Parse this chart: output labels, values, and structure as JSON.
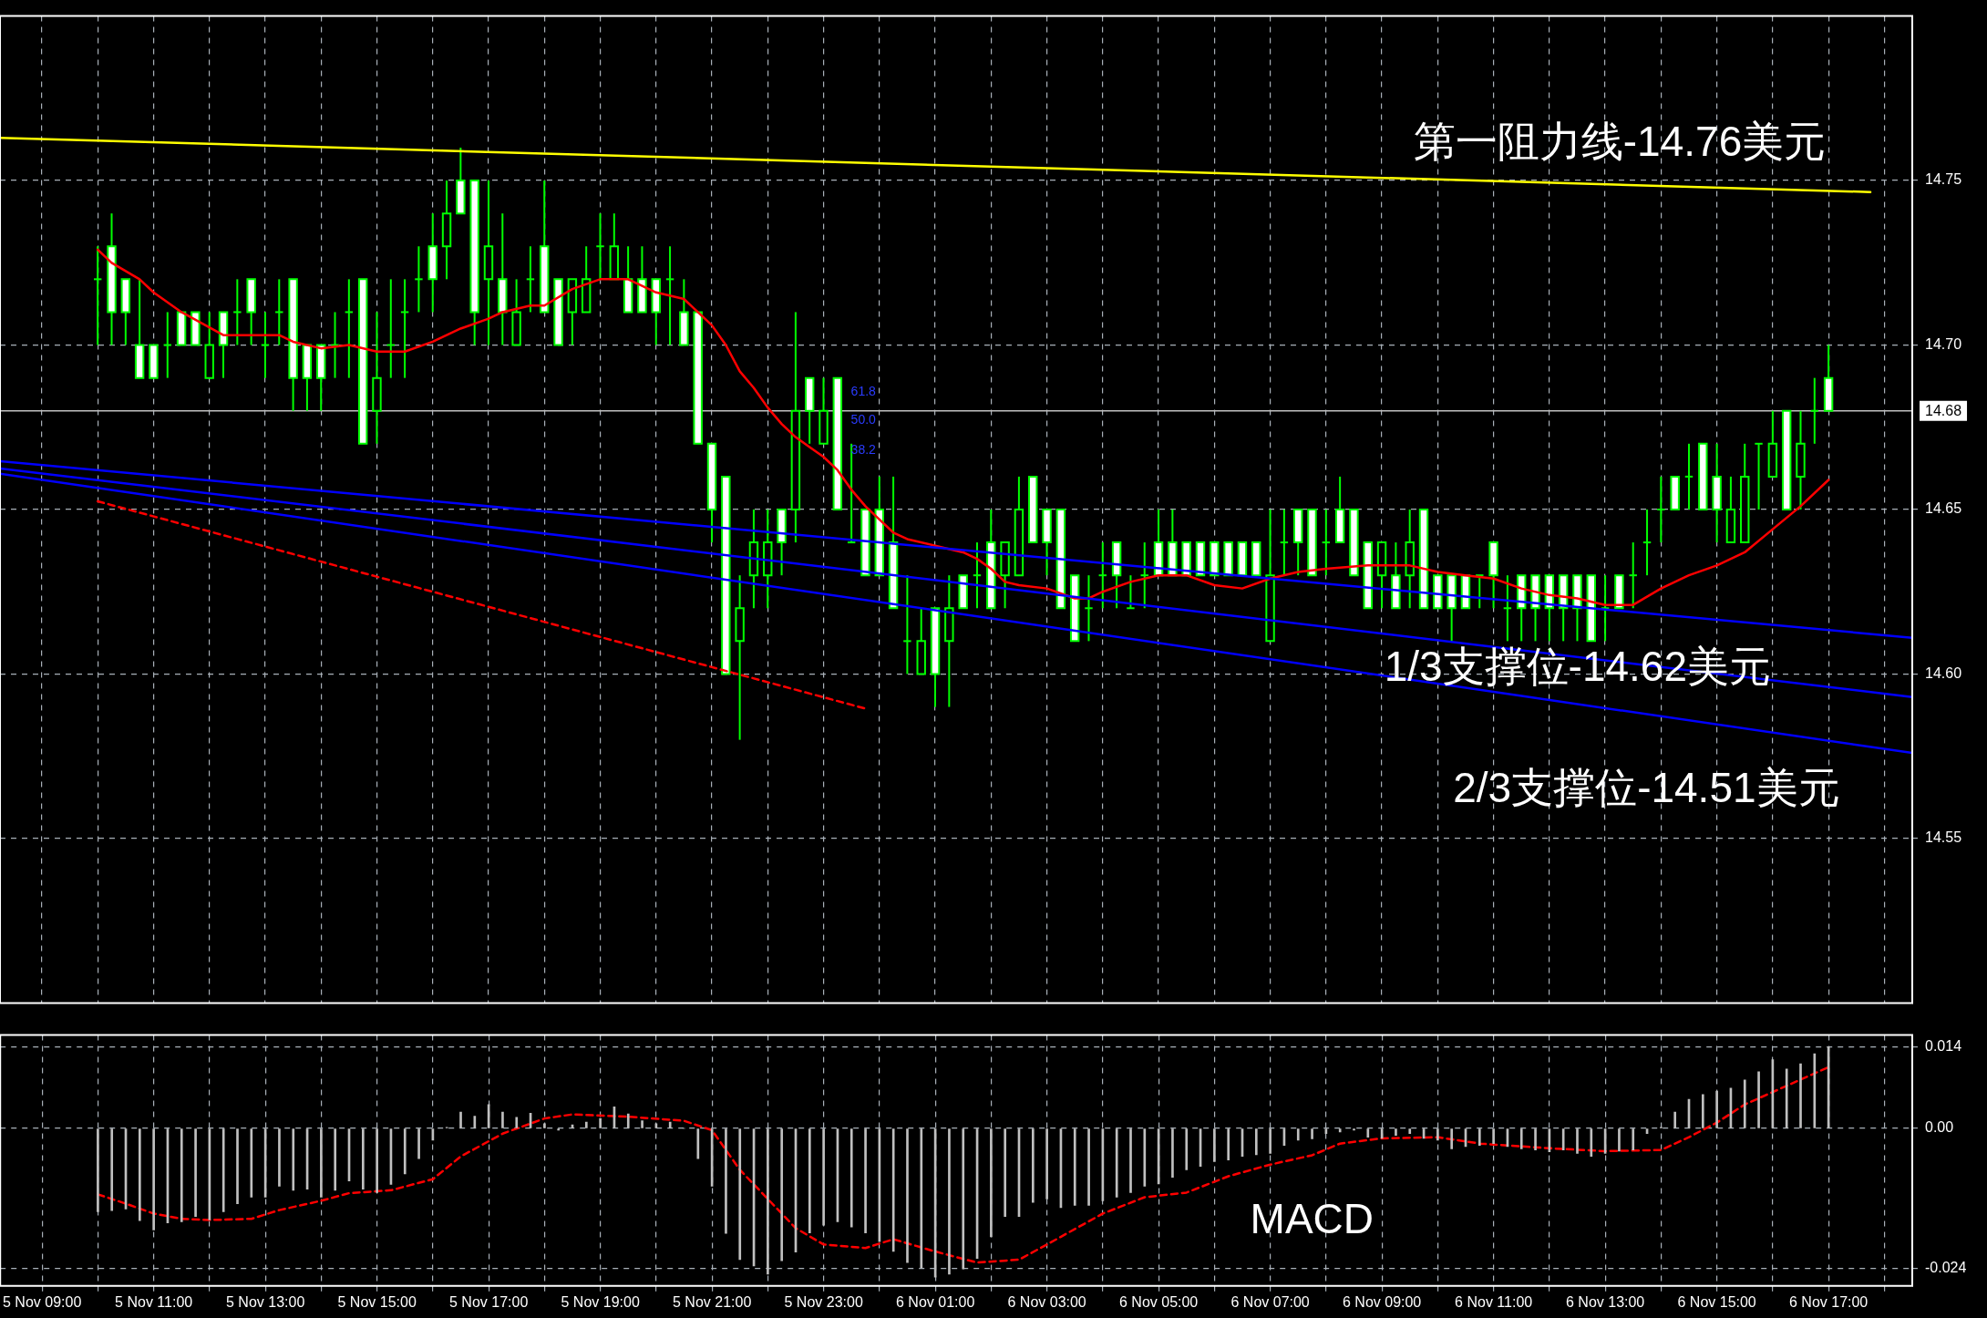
{
  "chart_data": [
    {
      "type": "candlestick",
      "color": "#00ff00",
      "colors": [
        "#00ff00",
        "#ffffff",
        "#ffffff",
        "#ffffff",
        "#ffffff",
        "#00ff00",
        "#ffffff",
        "#ffffff",
        "#000000",
        "#ffffff",
        "#00ff00",
        "#ffffff",
        "#00ff00",
        "#00ff00",
        "#ffffff",
        "#ffffff",
        "#ffffff",
        "#00ff00",
        "#00ff00",
        "#ffffff",
        "#000000",
        "#00ff00",
        "#00ff00",
        "#00ff00",
        "#ffffff",
        "#000000",
        "#ffffff",
        "#ffffff",
        "#000000",
        "#ffffff",
        "#000000",
        "#00ff00",
        "#ffffff",
        "#ffffff",
        "#000000",
        "#000000",
        "#00ff00",
        "#000000",
        "#ffffff",
        "#ffffff",
        "#ffffff",
        "#00ff00",
        "#ffffff",
        "#ffffff",
        "#ffffff",
        "#ffffff",
        "#000000",
        "#000000",
        "#000000",
        "#ffffff",
        "#000000",
        "#ffffff",
        "#000000",
        "#ffffff",
        "#00ff00",
        "#ffffff",
        "#ffffff",
        "#ffffff",
        "#00ff00",
        "#000000",
        "#ffffff",
        "#000000",
        "#ffffff",
        "#00ff00",
        "#ffffff",
        "#000000",
        "#000000",
        "#ffffff",
        "#ffffff",
        "#ffffff",
        "#ffffff",
        "#00ff00",
        "#00ff00",
        "#ffffff",
        "#00ff00",
        "#00ff00",
        "#ffffff",
        "#ffffff",
        "#ffffff",
        "#ffffff",
        "#ffffff",
        "#ffffff",
        "#ffffff",
        "#ffffff",
        "#000000",
        "#00ff00",
        "#ffffff",
        "#ffffff",
        "#00ff00",
        "#ffffff",
        "#ffffff",
        "#ffffff",
        "#000000",
        "#ffffff",
        "#000000",
        "#ffffff",
        "#ffffff",
        "#ffffff",
        "#ffffff",
        "#00ff00",
        "#ffffff",
        "#00ff00",
        "#ffffff",
        "#ffffff",
        "#ffffff",
        "#ffffff",
        "#ffffff",
        "#ffffff",
        "#00ff00",
        "#ffffff",
        "#00ff00",
        "#00ff00",
        "#00ff00",
        "#ffffff",
        "#00ff00",
        "#ffffff",
        "#ffffff",
        "#000000",
        "#000000",
        "#00ff00",
        "#000000",
        "#ffffff",
        "#000000",
        "#00ff00",
        "#ffffff"
      ],
      "x": [
        "--11-05T10:00",
        "--11-05T10:15",
        "--11-05T10:30",
        "--11-05T10:45",
        "--11-05T11:00",
        "--11-05T11:15",
        "--11-05T11:30",
        "--11-05T11:45",
        "--11-05T12:00",
        "--11-05T12:15",
        "--11-05T12:30",
        "--11-05T12:45",
        "--11-05T13:00",
        "--11-05T13:15",
        "--11-05T13:30",
        "--11-05T13:45",
        "--11-05T14:00",
        "--11-05T14:15",
        "--11-05T14:30",
        "--11-05T14:45",
        "--11-05T15:00",
        "--11-05T15:15",
        "--11-05T15:30",
        "--11-05T15:45",
        "--11-05T16:00",
        "--11-05T16:15",
        "--11-05T16:30",
        "--11-05T16:45",
        "--11-05T17:00",
        "--11-05T17:15",
        "--11-05T17:30",
        "--11-05T17:45",
        "--11-05T18:00",
        "--11-05T18:15",
        "--11-05T18:30",
        "--11-05T18:45",
        "--11-05T19:00",
        "--11-05T19:15",
        "--11-05T19:30",
        "--11-05T19:45",
        "--11-05T20:00",
        "--11-05T20:15",
        "--11-05T20:30",
        "--11-05T20:45",
        "--11-05T21:00",
        "--11-05T21:15",
        "--11-05T21:30",
        "--11-05T21:45",
        "--11-05T22:00",
        "--11-05T22:15",
        "--11-05T22:30",
        "--11-05T22:45",
        "--11-05T23:00",
        "--11-05T23:15",
        "--11-05T23:30",
        "--11-05T23:45",
        "--11-06T00:00",
        "--11-06T00:15",
        "--11-06T00:30",
        "--11-06T00:45",
        "--11-06T01:00",
        "--11-06T01:15",
        "--11-06T01:30",
        "--11-06T01:45",
        "--11-06T02:00",
        "--11-06T02:15",
        "--11-06T02:30",
        "--11-06T02:45",
        "--11-06T03:00",
        "--11-06T03:15",
        "--11-06T03:30",
        "--11-06T03:45",
        "--11-06T04:00",
        "--11-06T04:15",
        "--11-06T04:30",
        "--11-06T04:45",
        "--11-06T05:00",
        "--11-06T05:15",
        "--11-06T05:30",
        "--11-06T05:45",
        "--11-06T06:00",
        "--11-06T06:15",
        "--11-06T06:30",
        "--11-06T06:45",
        "--11-06T07:00",
        "--11-06T07:15",
        "--11-06T07:30",
        "--11-06T07:45",
        "--11-06T08:00",
        "--11-06T08:15",
        "--11-06T08:30",
        "--11-06T08:45",
        "--11-06T09:00",
        "--11-06T09:15",
        "--11-06T09:30",
        "--11-06T09:45",
        "--11-06T10:00",
        "--11-06T10:15",
        "--11-06T10:30",
        "--11-06T10:45",
        "--11-06T11:00",
        "--11-06T11:15",
        "--11-06T11:30",
        "--11-06T11:45",
        "--11-06T12:00",
        "--11-06T12:15",
        "--11-06T12:30",
        "--11-06T12:45",
        "--11-06T13:00",
        "--11-06T13:15",
        "--11-06T13:30",
        "--11-06T13:45",
        "--11-06T14:00",
        "--11-06T14:15",
        "--11-06T14:30",
        "--11-06T14:45",
        "--11-06T15:00",
        "--11-06T15:15",
        "--11-06T15:30",
        "--11-06T15:45",
        "--11-06T16:00",
        "--11-06T16:15",
        "--11-06T16:30",
        "--11-06T16:45",
        "--11-06T17:00"
      ],
      "ohlc": [
        [
          14.72,
          14.73,
          14.7,
          14.72
        ],
        [
          14.73,
          14.74,
          14.7,
          14.71
        ],
        [
          14.72,
          14.72,
          14.7,
          14.71
        ],
        [
          14.7,
          14.72,
          14.69,
          14.69
        ],
        [
          14.7,
          14.7,
          14.69,
          14.69
        ],
        [
          14.7,
          14.71,
          14.69,
          14.7
        ],
        [
          14.71,
          14.71,
          14.7,
          14.7
        ],
        [
          14.71,
          14.71,
          14.7,
          14.7
        ],
        [
          14.69,
          14.71,
          14.69,
          14.7
        ],
        [
          14.71,
          14.71,
          14.69,
          14.7
        ],
        [
          14.71,
          14.72,
          14.7,
          14.71
        ],
        [
          14.72,
          14.72,
          14.7,
          14.71
        ],
        [
          14.7,
          14.71,
          14.69,
          14.7
        ],
        [
          14.71,
          14.72,
          14.7,
          14.71
        ],
        [
          14.72,
          14.72,
          14.68,
          14.69
        ],
        [
          14.7,
          14.7,
          14.68,
          14.69
        ],
        [
          14.7,
          14.7,
          14.68,
          14.69
        ],
        [
          14.7,
          14.71,
          14.69,
          14.7
        ],
        [
          14.71,
          14.72,
          14.69,
          14.71
        ],
        [
          14.72,
          14.72,
          14.67,
          14.67
        ],
        [
          14.68,
          14.71,
          14.67,
          14.69
        ],
        [
          14.7,
          14.72,
          14.69,
          14.7
        ],
        [
          14.71,
          14.72,
          14.69,
          14.71
        ],
        [
          14.72,
          14.73,
          14.71,
          14.72
        ],
        [
          14.73,
          14.74,
          14.71,
          14.72
        ],
        [
          14.73,
          14.75,
          14.72,
          14.74
        ],
        [
          14.75,
          14.76,
          14.74,
          14.74
        ],
        [
          14.75,
          14.75,
          14.7,
          14.71
        ],
        [
          14.72,
          14.75,
          14.7,
          14.73
        ],
        [
          14.72,
          14.74,
          14.7,
          14.71
        ],
        [
          14.7,
          14.72,
          14.7,
          14.71
        ],
        [
          14.72,
          14.73,
          14.71,
          14.72
        ],
        [
          14.73,
          14.75,
          14.71,
          14.71
        ],
        [
          14.72,
          14.72,
          14.7,
          14.7
        ],
        [
          14.71,
          14.72,
          14.7,
          14.72
        ],
        [
          14.71,
          14.73,
          14.71,
          14.72
        ],
        [
          14.73,
          14.74,
          14.72,
          14.73
        ],
        [
          14.72,
          14.74,
          14.72,
          14.73
        ],
        [
          14.72,
          14.73,
          14.71,
          14.71
        ],
        [
          14.72,
          14.73,
          14.71,
          14.71
        ],
        [
          14.72,
          14.72,
          14.7,
          14.71
        ],
        [
          14.72,
          14.73,
          14.7,
          14.72
        ],
        [
          14.71,
          14.72,
          14.7,
          14.7
        ],
        [
          14.71,
          14.71,
          14.67,
          14.67
        ],
        [
          14.67,
          14.67,
          14.64,
          14.65
        ],
        [
          14.66,
          14.66,
          14.6,
          14.6
        ],
        [
          14.61,
          14.63,
          14.58,
          14.62
        ],
        [
          14.63,
          14.65,
          14.62,
          14.64
        ],
        [
          14.63,
          14.65,
          14.62,
          14.64
        ],
        [
          14.65,
          14.65,
          14.63,
          14.64
        ],
        [
          14.65,
          14.71,
          14.64,
          14.68
        ],
        [
          14.69,
          14.69,
          14.67,
          14.68
        ],
        [
          14.67,
          14.69,
          14.67,
          14.68
        ],
        [
          14.69,
          14.69,
          14.65,
          14.65
        ],
        [
          14.64,
          14.67,
          14.64,
          14.64
        ],
        [
          14.65,
          14.65,
          14.63,
          14.63
        ],
        [
          14.65,
          14.66,
          14.63,
          14.63
        ],
        [
          14.64,
          14.66,
          14.62,
          14.62
        ],
        [
          14.61,
          14.63,
          14.6,
          14.61
        ],
        [
          14.6,
          14.62,
          14.6,
          14.61
        ],
        [
          14.62,
          14.62,
          14.59,
          14.6
        ],
        [
          14.61,
          14.63,
          14.59,
          14.62
        ],
        [
          14.63,
          14.63,
          14.62,
          14.62
        ],
        [
          14.63,
          14.64,
          14.62,
          14.63
        ],
        [
          14.64,
          14.65,
          14.62,
          14.62
        ],
        [
          14.63,
          14.64,
          14.62,
          14.64
        ],
        [
          14.63,
          14.66,
          14.63,
          14.65
        ],
        [
          14.66,
          14.66,
          14.64,
          14.64
        ],
        [
          14.65,
          14.65,
          14.63,
          14.64
        ],
        [
          14.65,
          14.65,
          14.62,
          14.62
        ],
        [
          14.63,
          14.63,
          14.61,
          14.61
        ],
        [
          14.62,
          14.63,
          14.61,
          14.62
        ],
        [
          14.63,
          14.64,
          14.62,
          14.63
        ],
        [
          14.64,
          14.64,
          14.62,
          14.63
        ],
        [
          14.62,
          14.63,
          14.62,
          14.62
        ],
        [
          14.63,
          14.64,
          14.62,
          14.63
        ],
        [
          14.64,
          14.65,
          14.63,
          14.63
        ],
        [
          14.64,
          14.65,
          14.63,
          14.63
        ],
        [
          14.64,
          14.64,
          14.63,
          14.63
        ],
        [
          14.64,
          14.64,
          14.63,
          14.63
        ],
        [
          14.64,
          14.64,
          14.63,
          14.63
        ],
        [
          14.64,
          14.64,
          14.63,
          14.63
        ],
        [
          14.64,
          14.64,
          14.63,
          14.63
        ],
        [
          14.64,
          14.64,
          14.63,
          14.63
        ],
        [
          14.61,
          14.65,
          14.61,
          14.63
        ],
        [
          14.64,
          14.65,
          14.63,
          14.64
        ],
        [
          14.65,
          14.65,
          14.63,
          14.64
        ],
        [
          14.65,
          14.65,
          14.63,
          14.63
        ],
        [
          14.64,
          14.65,
          14.63,
          14.64
        ],
        [
          14.65,
          14.66,
          14.64,
          14.64
        ],
        [
          14.65,
          14.65,
          14.63,
          14.63
        ],
        [
          14.64,
          14.64,
          14.62,
          14.62
        ],
        [
          14.63,
          14.64,
          14.62,
          14.64
        ],
        [
          14.63,
          14.64,
          14.62,
          14.62
        ],
        [
          14.63,
          14.65,
          14.62,
          14.64
        ],
        [
          14.65,
          14.65,
          14.62,
          14.62
        ],
        [
          14.63,
          14.63,
          14.62,
          14.62
        ],
        [
          14.63,
          14.63,
          14.61,
          14.62
        ],
        [
          14.63,
          14.63,
          14.62,
          14.62
        ],
        [
          14.63,
          14.63,
          14.62,
          14.63
        ],
        [
          14.64,
          14.64,
          14.62,
          14.63
        ],
        [
          14.62,
          14.63,
          14.61,
          14.62
        ],
        [
          14.63,
          14.63,
          14.61,
          14.62
        ],
        [
          14.63,
          14.63,
          14.61,
          14.62
        ],
        [
          14.63,
          14.63,
          14.61,
          14.62
        ],
        [
          14.63,
          14.63,
          14.61,
          14.62
        ],
        [
          14.63,
          14.63,
          14.61,
          14.62
        ],
        [
          14.63,
          14.63,
          14.61,
          14.61
        ],
        [
          14.62,
          14.63,
          14.61,
          14.62
        ],
        [
          14.63,
          14.63,
          14.62,
          14.62
        ],
        [
          14.63,
          14.64,
          14.62,
          14.63
        ],
        [
          14.64,
          14.65,
          14.63,
          14.64
        ],
        [
          14.65,
          14.66,
          14.64,
          14.65
        ],
        [
          14.66,
          14.66,
          14.65,
          14.65
        ],
        [
          14.66,
          14.67,
          14.65,
          14.66
        ],
        [
          14.67,
          14.67,
          14.65,
          14.65
        ],
        [
          14.66,
          14.67,
          14.64,
          14.65
        ],
        [
          14.64,
          14.66,
          14.64,
          14.65
        ],
        [
          14.64,
          14.67,
          14.64,
          14.66
        ],
        [
          14.67,
          14.67,
          14.65,
          14.67
        ],
        [
          14.66,
          14.68,
          14.66,
          14.67
        ],
        [
          14.68,
          14.68,
          14.65,
          14.65
        ],
        [
          14.66,
          14.68,
          14.65,
          14.67
        ],
        [
          14.68,
          14.69,
          14.67,
          14.68
        ],
        [
          14.69,
          14.7,
          14.68,
          14.68
        ]
      ],
      "series": [
        {
          "type": "line",
          "color": "#ffff00",
          "x": [
            "--11-05T08:15",
            "--11-06T17:45"
          ],
          "values": [
            14.763,
            14.7465
          ]
        },
        {
          "type": "line",
          "color": "#0000ff",
          "x": [
            "--11-05T08:15",
            "--11-06T18:30"
          ],
          "values": [
            14.6647,
            14.611
          ]
        },
        {
          "type": "line",
          "color": "#0000ff",
          "x": [
            "--11-05T08:15",
            "--11-06T18:30"
          ],
          "values": [
            14.6625,
            14.593
          ]
        },
        {
          "type": "line",
          "color": "#0000ff",
          "x": [
            "--11-05T08:15",
            "--11-06T18:30"
          ],
          "values": [
            14.6609,
            14.576
          ]
        },
        {
          "type": "line",
          "color": "#ff0000",
          "line_style": "dashed",
          "x": [
            "--11-05T10:00",
            "--11-05T23:45"
          ],
          "values": [
            14.6525,
            14.5895
          ]
        },
        {
          "type": "line",
          "color": "#ff0000",
          "x": [
            "--11-05T10:00",
            "--11-05T10:15",
            "--11-05T10:45",
            "--11-05T11:00",
            "--11-05T11:30",
            "--11-05T12:15",
            "--11-05T13:15",
            "--11-05T13:30",
            "--11-05T14:00",
            "--11-05T14:30",
            "--11-05T15:00",
            "--11-05T15:30",
            "--11-05T16:00",
            "--11-05T16:30",
            "--11-05T17:00",
            "--11-05T17:15",
            "--11-05T17:45",
            "--11-05T18:00",
            "--11-05T18:30",
            "--11-05T19:00",
            "--11-05T19:15",
            "--11-05T19:30",
            "--11-05T20:00",
            "--11-05T20:30",
            "--11-05T20:45",
            "--11-05T21:00",
            "--11-05T21:15",
            "--11-05T21:30",
            "--11-05T21:45",
            "--11-05T22:00",
            "--11-05T22:15",
            "--11-05T22:30",
            "--11-05T22:45",
            "--11-05T23:00",
            "--11-05T23:15",
            "--11-05T23:30",
            "--11-05T23:45",
            "--11-06T00:00",
            "--11-06T00:15",
            "--11-06T00:30",
            "--11-06T01:00",
            "--11-06T01:30",
            "--11-06T01:45",
            "--11-06T02:00",
            "--11-06T02:15",
            "--11-06T02:30",
            "--11-06T03:00",
            "--11-06T03:30",
            "--11-06T03:45",
            "--11-06T04:00",
            "--11-06T04:30",
            "--11-06T05:00",
            "--11-06T05:30",
            "--11-06T06:00",
            "--11-06T06:30",
            "--11-06T07:00",
            "--11-06T07:30",
            "--11-06T08:00",
            "--11-06T08:45",
            "--11-06T09:30",
            "--11-06T10:00",
            "--11-06T10:30",
            "--11-06T11:00",
            "--11-06T11:30",
            "--11-06T12:00",
            "--11-06T12:30",
            "--11-06T13:00",
            "--11-06T13:30",
            "--11-06T14:00",
            "--11-06T14:30",
            "--11-06T15:00",
            "--11-06T15:30",
            "--11-06T16:00",
            "--11-06T16:30",
            "--11-06T17:00"
          ],
          "values": [
            14.729,
            14.725,
            14.72,
            14.716,
            14.71,
            14.703,
            14.703,
            14.701,
            14.699,
            14.7,
            14.698,
            14.698,
            14.701,
            14.705,
            14.708,
            14.71,
            14.712,
            14.712,
            14.717,
            14.72,
            14.72,
            14.72,
            14.716,
            14.714,
            14.71,
            14.706,
            14.7,
            14.692,
            14.687,
            14.681,
            14.676,
            14.672,
            14.669,
            14.666,
            14.662,
            14.656,
            14.651,
            14.647,
            14.643,
            14.641,
            14.639,
            14.637,
            14.635,
            14.632,
            14.628,
            14.627,
            14.626,
            14.623,
            14.623,
            14.625,
            14.628,
            14.63,
            14.63,
            14.627,
            14.626,
            14.629,
            14.631,
            14.632,
            14.633,
            14.633,
            14.631,
            14.63,
            14.629,
            14.626,
            14.624,
            14.623,
            14.621,
            14.621,
            14.626,
            14.63,
            14.633,
            14.637,
            14.644,
            14.651,
            14.659
          ]
        }
      ],
      "xlim": [
        "--11-05T08:15",
        "--11-06T18:30"
      ],
      "xticks": [
        {
          "value": "--11-05T09:00",
          "label": "5 Nov 09:00"
        },
        {
          "value": "--11-05T10:00",
          "label": null
        },
        {
          "value": "--11-05T11:00",
          "label": "5 Nov 11:00"
        },
        {
          "value": "--11-05T12:00",
          "label": null
        },
        {
          "value": "--11-05T13:00",
          "label": "5 Nov 13:00"
        },
        {
          "value": "--11-05T14:00",
          "label": null
        },
        {
          "value": "--11-05T15:00",
          "label": "5 Nov 15:00"
        },
        {
          "value": "--11-05T16:00",
          "label": null
        },
        {
          "value": "--11-05T17:00",
          "label": "5 Nov 17:00"
        },
        {
          "value": "--11-05T18:00",
          "label": null
        },
        {
          "value": "--11-05T19:00",
          "label": "5 Nov 19:00"
        },
        {
          "value": "--11-05T20:00",
          "label": null
        },
        {
          "value": "--11-05T21:00",
          "label": "5 Nov 21:00"
        },
        {
          "value": "--11-05T22:00",
          "label": null
        },
        {
          "value": "--11-05T23:00",
          "label": "5 Nov 23:00"
        },
        {
          "value": "--11-06T00:00",
          "label": null
        },
        {
          "value": "--11-06T01:00",
          "label": "6 Nov 01:00"
        },
        {
          "value": "--11-06T02:00",
          "label": null
        },
        {
          "value": "--11-06T03:00",
          "label": "6 Nov 03:00"
        },
        {
          "value": "--11-06T04:00",
          "label": null
        },
        {
          "value": "--11-06T05:00",
          "label": "6 Nov 05:00"
        },
        {
          "value": "--11-06T06:00",
          "label": null
        },
        {
          "value": "--11-06T07:00",
          "label": "6 Nov 07:00"
        },
        {
          "value": "--11-06T08:00",
          "label": null
        },
        {
          "value": "--11-06T09:00",
          "label": "6 Nov 09:00"
        },
        {
          "value": "--11-06T10:00",
          "label": null
        },
        {
          "value": "--11-06T11:00",
          "label": "6 Nov 11:00"
        },
        {
          "value": "--11-06T12:00",
          "label": null
        },
        {
          "value": "--11-06T13:00",
          "label": "6 Nov 13:00"
        },
        {
          "value": "--11-06T14:00",
          "label": null
        },
        {
          "value": "--11-06T15:00",
          "label": "6 Nov 15:00"
        },
        {
          "value": "--11-06T16:00",
          "label": null
        },
        {
          "value": "--11-06T17:00",
          "label": "6 Nov 17:00"
        },
        {
          "value": "--11-06T18:00",
          "label": null
        }
      ],
      "ylim": [
        14.5,
        14.8
      ],
      "yticks": [
        14.55,
        {
          "value": 14.6,
          "label": "14.60"
        },
        14.65,
        {
          "value": 14.7,
          "label": "14.70"
        },
        14.75
      ],
      "tick_labels": "y",
      "grid": true,
      "ref_lines": [
        {
          "axis": "y",
          "value": 14.68,
          "label": "14.68",
          "color": "#c0c0c0"
        }
      ],
      "annotations": [
        "第一阻力线-14.76美元",
        "1/3支撑位-14.62美元",
        "2/3支撑位-14.51美元",
        "61.8",
        "50.0",
        "38.2"
      ]
    },
    {
      "type": "bar",
      "x": [
        "--11-05T10:00",
        "--11-05T10:15",
        "--11-05T10:30",
        "--11-05T10:45",
        "--11-05T11:00",
        "--11-05T11:15",
        "--11-05T11:30",
        "--11-05T11:45",
        "--11-05T12:00",
        "--11-05T12:15",
        "--11-05T12:30",
        "--11-05T12:45",
        "--11-05T13:00",
        "--11-05T13:15",
        "--11-05T13:30",
        "--11-05T13:45",
        "--11-05T14:00",
        "--11-05T14:15",
        "--11-05T14:30",
        "--11-05T14:45",
        "--11-05T15:00",
        "--11-05T15:15",
        "--11-05T15:30",
        "--11-05T15:45",
        "--11-05T16:00",
        "--11-05T16:15",
        "--11-05T16:30",
        "--11-05T16:45",
        "--11-05T17:00",
        "--11-05T17:15",
        "--11-05T17:30",
        "--11-05T17:45",
        "--11-05T18:00",
        "--11-05T18:15",
        "--11-05T18:30",
        "--11-05T18:45",
        "--11-05T19:00",
        "--11-05T19:15",
        "--11-05T19:30",
        "--11-05T19:45",
        "--11-05T20:00",
        "--11-05T20:15",
        "--11-05T20:30",
        "--11-05T20:45",
        "--11-05T21:00",
        "--11-05T21:15",
        "--11-05T21:30",
        "--11-05T21:45",
        "--11-05T22:00",
        "--11-05T22:15",
        "--11-05T22:30",
        "--11-05T22:45",
        "--11-05T23:00",
        "--11-05T23:15",
        "--11-05T23:30",
        "--11-05T23:45",
        "--11-06T00:00",
        "--11-06T00:15",
        "--11-06T00:30",
        "--11-06T00:45",
        "--11-06T01:00",
        "--11-06T01:15",
        "--11-06T01:30",
        "--11-06T01:45",
        "--11-06T02:00",
        "--11-06T02:15",
        "--11-06T02:30",
        "--11-06T02:45",
        "--11-06T03:00",
        "--11-06T03:15",
        "--11-06T03:30",
        "--11-06T03:45",
        "--11-06T04:00",
        "--11-06T04:15",
        "--11-06T04:30",
        "--11-06T04:45",
        "--11-06T05:00",
        "--11-06T05:15",
        "--11-06T05:30",
        "--11-06T05:45",
        "--11-06T06:00",
        "--11-06T06:15",
        "--11-06T06:30",
        "--11-06T06:45",
        "--11-06T07:00",
        "--11-06T07:15",
        "--11-06T07:30",
        "--11-06T07:45",
        "--11-06T08:00",
        "--11-06T08:15",
        "--11-06T08:30",
        "--11-06T08:45",
        "--11-06T09:00",
        "--11-06T09:15",
        "--11-06T09:30",
        "--11-06T09:45",
        "--11-06T10:00",
        "--11-06T10:15",
        "--11-06T10:30",
        "--11-06T10:45",
        "--11-06T11:00",
        "--11-06T11:15",
        "--11-06T11:30",
        "--11-06T11:45",
        "--11-06T12:00",
        "--11-06T12:15",
        "--11-06T12:30",
        "--11-06T12:45",
        "--11-06T13:00",
        "--11-06T13:15",
        "--11-06T13:30",
        "--11-06T13:45",
        "--11-06T14:00",
        "--11-06T14:15",
        "--11-06T14:30",
        "--11-06T14:45",
        "--11-06T15:00",
        "--11-06T15:15",
        "--11-06T15:30",
        "--11-06T15:45",
        "--11-06T16:00",
        "--11-06T16:15",
        "--11-06T16:30",
        "--11-06T16:45",
        "--11-06T17:00"
      ],
      "series": [
        {
          "color": "#c0c0c0",
          "values": [
            -0.0143,
            -0.0141,
            -0.0138,
            -0.0158,
            -0.0174,
            -0.0162,
            -0.016,
            -0.0151,
            -0.0157,
            -0.0143,
            -0.0129,
            -0.0118,
            -0.0118,
            -0.0099,
            -0.0106,
            -0.0104,
            -0.0118,
            -0.0106,
            -0.009,
            -0.0104,
            -0.011,
            -0.0096,
            -0.0078,
            -0.0052,
            -0.002,
            0.0002,
            0.0028,
            0.0021,
            0.0041,
            0.0028,
            0.0019,
            0.0026,
            0.0008,
            -0.0003,
            0.0006,
            0.0011,
            0.0017,
            0.0037,
            0.0025,
            0.0013,
            0.0008,
            0.0011,
            0,
            -0.0052,
            -0.0099,
            -0.018,
            -0.0225,
            -0.0236,
            -0.025,
            -0.0227,
            -0.0212,
            -0.0179,
            -0.0166,
            -0.016,
            -0.0169,
            -0.0179,
            -0.0194,
            -0.0211,
            -0.023,
            -0.0239,
            -0.0255,
            -0.025,
            -0.0241,
            -0.0223,
            -0.0186,
            -0.0151,
            -0.0151,
            -0.0127,
            -0.0121,
            -0.0136,
            -0.0132,
            -0.0132,
            -0.0124,
            -0.0118,
            -0.011,
            -0.0099,
            -0.0095,
            -0.0084,
            -0.0071,
            -0.0065,
            -0.0057,
            -0.0054,
            -0.0048,
            -0.0045,
            -0.0043,
            -0.0029,
            -0.002,
            -0.0018,
            -0.0009,
            -0.0006,
            -0.0003,
            -0.0015,
            -0.0017,
            -0.0012,
            -0.0009,
            -0.0017,
            -0.002,
            -0.0035,
            -0.0031,
            -0.0029,
            -0.0026,
            -0.0031,
            -0.0035,
            -0.0037,
            -0.004,
            -0.0037,
            -0.0043,
            -0.0048,
            -0.0043,
            -0.0039,
            -0.0037,
            -0.0009,
            0.0002,
            0.0028,
            0.005,
            0.0058,
            0.0064,
            0.0069,
            0.0083,
            0.0097,
            0.0118,
            0.0102,
            0.0111,
            0.0128,
            0.014
          ]
        },
        {
          "type": "line",
          "color": "#ff0000",
          "line_style": "dashed",
          "x": [
            "--11-05T10:00",
            "--11-05T10:30",
            "--11-05T11:00",
            "--11-05T11:30",
            "--11-05T12:00",
            "--11-05T12:45",
            "--11-05T13:15",
            "--11-05T14:00",
            "--11-05T14:30",
            "--11-05T15:15",
            "--11-05T16:00",
            "--11-05T16:30",
            "--11-05T17:15",
            "--11-05T18:00",
            "--11-05T18:30",
            "--11-05T19:30",
            "--11-05T20:30",
            "--11-05T21:00",
            "--11-05T21:30",
            "--11-05T22:30",
            "--11-05T23:00",
            "--11-05T23:45",
            "--11-06T00:15",
            "--11-06T01:00",
            "--11-06T01:45",
            "--11-06T02:30",
            "--11-06T03:00",
            "--11-06T04:00",
            "--11-06T04:45",
            "--11-06T05:30",
            "--11-06T06:15",
            "--11-06T07:00",
            "--11-06T07:45",
            "--11-06T08:15",
            "--11-06T09:00",
            "--11-06T10:00",
            "--11-06T10:45",
            "--11-06T12:00",
            "--11-06T13:00",
            "--11-06T14:00",
            "--11-06T14:30",
            "--11-06T15:00",
            "--11-06T15:30",
            "--11-06T16:15",
            "--11-06T17:00"
          ],
          "values": [
            -0.0113,
            -0.0129,
            -0.0146,
            -0.0155,
            -0.0157,
            -0.0155,
            -0.014,
            -0.0124,
            -0.0111,
            -0.0106,
            -0.0087,
            -0.0048,
            -0.0009,
            0.0017,
            0.0024,
            0.002,
            0.0013,
            -0.0003,
            -0.0071,
            -0.0171,
            -0.0199,
            -0.0205,
            -0.019,
            -0.0211,
            -0.023,
            -0.0225,
            -0.0199,
            -0.0146,
            -0.0118,
            -0.011,
            -0.0082,
            -0.0062,
            -0.0046,
            -0.0026,
            -0.0017,
            -0.0015,
            -0.0026,
            -0.0034,
            -0.0039,
            -0.0037,
            -0.0015,
            0.001,
            0.0041,
            0.0073,
            0.0105
          ]
        }
      ],
      "xlim": [
        "--11-05T08:15",
        "--11-06T18:30"
      ],
      "xticks": [
        {
          "value": "--11-05T09:00",
          "label": "5 Nov 09:00"
        },
        {
          "value": "--11-05T10:00",
          "label": null
        },
        {
          "value": "--11-05T11:00",
          "label": "5 Nov 11:00"
        },
        {
          "value": "--11-05T12:00",
          "label": null
        },
        {
          "value": "--11-05T13:00",
          "label": "5 Nov 13:00"
        },
        {
          "value": "--11-05T14:00",
          "label": null
        },
        {
          "value": "--11-05T15:00",
          "label": "5 Nov 15:00"
        },
        {
          "value": "--11-05T16:00",
          "label": null
        },
        {
          "value": "--11-05T17:00",
          "label": "5 Nov 17:00"
        },
        {
          "value": "--11-05T18:00",
          "label": null
        },
        {
          "value": "--11-05T19:00",
          "label": "5 Nov 19:00"
        },
        {
          "value": "--11-05T20:00",
          "label": null
        },
        {
          "value": "--11-05T21:00",
          "label": "5 Nov 21:00"
        },
        {
          "value": "--11-05T22:00",
          "label": null
        },
        {
          "value": "--11-05T23:00",
          "label": "5 Nov 23:00"
        },
        {
          "value": "--11-06T00:00",
          "label": null
        },
        {
          "value": "--11-06T01:00",
          "label": "6 Nov 01:00"
        },
        {
          "value": "--11-06T02:00",
          "label": null
        },
        {
          "value": "--11-06T03:00",
          "label": "6 Nov 03:00"
        },
        {
          "value": "--11-06T04:00",
          "label": null
        },
        {
          "value": "--11-06T05:00",
          "label": "6 Nov 05:00"
        },
        {
          "value": "--11-06T06:00",
          "label": null
        },
        {
          "value": "--11-06T07:00",
          "label": "6 Nov 07:00"
        },
        {
          "value": "--11-06T08:00",
          "label": null
        },
        {
          "value": "--11-06T09:00",
          "label": "6 Nov 09:00"
        },
        {
          "value": "--11-06T10:00",
          "label": null
        },
        {
          "value": "--11-06T11:00",
          "label": "6 Nov 11:00"
        },
        {
          "value": "--11-06T12:00",
          "label": null
        },
        {
          "value": "--11-06T13:00",
          "label": "6 Nov 13:00"
        },
        {
          "value": "--11-06T14:00",
          "label": null
        },
        {
          "value": "--11-06T15:00",
          "label": "6 Nov 15:00"
        },
        {
          "value": "--11-06T16:00",
          "label": null
        },
        {
          "value": "--11-06T17:00",
          "label": "6 Nov 17:00"
        },
        {
          "value": "--11-06T18:00",
          "label": null
        }
      ],
      "ylim": [
        -0.027,
        0.016
      ],
      "yticks": [
        -0.024,
        {
          "value": 0,
          "label": "0.00"
        },
        0.014
      ],
      "grid": true,
      "annotations": [
        "MACD"
      ]
    }
  ]
}
